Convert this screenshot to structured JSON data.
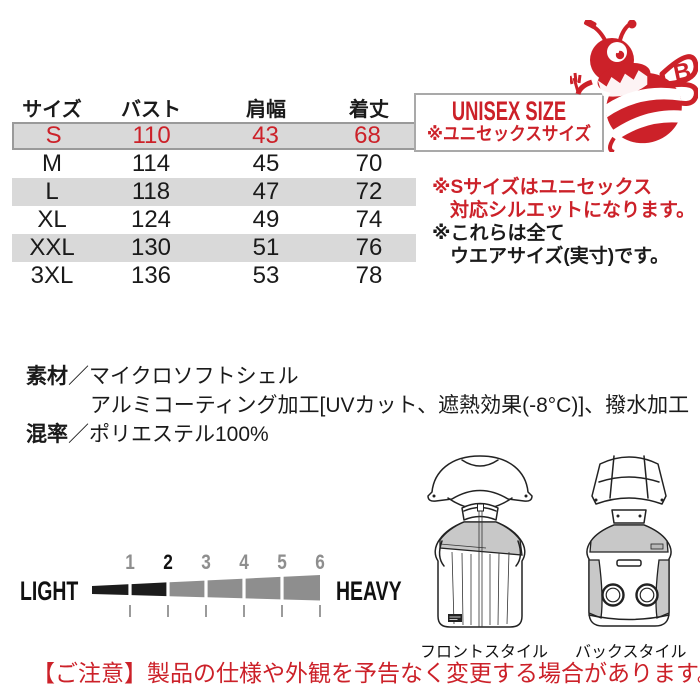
{
  "colors": {
    "accent_red": "#cc2129",
    "row_stripe": "#d9d9d9",
    "highlight_border": "#9a9a9a",
    "scale_dark": "#1c1c1c",
    "scale_gray": "#8e8e8e"
  },
  "size_table": {
    "columns": [
      "サイズ",
      "バスト",
      "肩幅",
      "着丈"
    ],
    "rows": [
      {
        "size": "S",
        "bust": "110",
        "shoulder": "43",
        "length": "68",
        "highlight": true,
        "shaded": true
      },
      {
        "size": "M",
        "bust": "114",
        "shoulder": "45",
        "length": "70",
        "highlight": false,
        "shaded": false
      },
      {
        "size": "L",
        "bust": "118",
        "shoulder": "47",
        "length": "72",
        "highlight": false,
        "shaded": true
      },
      {
        "size": "XL",
        "bust": "124",
        "shoulder": "49",
        "length": "74",
        "highlight": false,
        "shaded": false
      },
      {
        "size": "XXL",
        "bust": "130",
        "shoulder": "51",
        "length": "76",
        "highlight": false,
        "shaded": true
      },
      {
        "size": "3XL",
        "bust": "136",
        "shoulder": "53",
        "length": "78",
        "highlight": false,
        "shaded": false
      }
    ]
  },
  "badge": {
    "title": "UNISEX SIZE",
    "subtitle": "※ユニセックスサイズ"
  },
  "mascot": {
    "name": "bee-mascot",
    "wing_letter": "B"
  },
  "notes": {
    "red_line1": "※Sサイズはユニセックス",
    "red_line2": "対応シルエットになります。",
    "black_line1": "※これらは全て",
    "black_line2": "ウエアサイズ(実寸)です。"
  },
  "materials": {
    "label": "素材",
    "separator": "／",
    "name": "マイクロソフトシェル",
    "detail": "アルミコーティング加工[UVカット、遮熱効果(-8°C)]、撥水加工",
    "mixture_label": "混率",
    "mixture_value": "ポリエステル100%"
  },
  "weight_scale": {
    "left_label": "LIGHT",
    "right_label": "HEAVY",
    "levels": [
      1,
      2,
      3,
      4,
      5,
      6
    ],
    "active_level": 2,
    "filled_segments": 2
  },
  "illustrations": {
    "front_label": "フロントスタイル",
    "back_label": "バックスタイル"
  },
  "footer_notice": "【ご注意】製品の仕様や外観を予告なく変更する場合があります。"
}
